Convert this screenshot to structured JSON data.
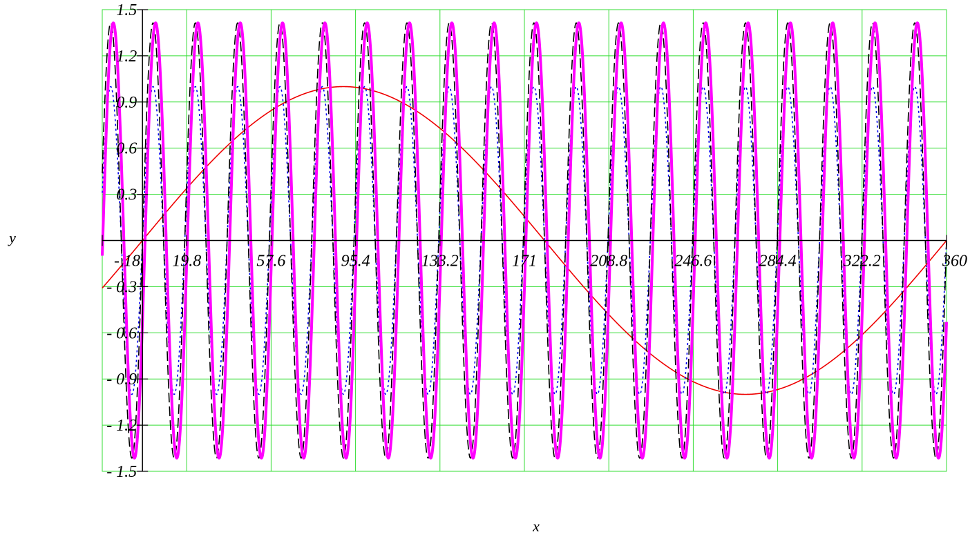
{
  "chart_data": {
    "type": "line",
    "title": "",
    "xlabel": "x",
    "ylabel": "y",
    "xlim": [
      -18,
      360
    ],
    "ylim": [
      -1.5,
      1.5
    ],
    "grid": true,
    "x_ticks": [
      -18,
      19.8,
      57.6,
      95.4,
      133.2,
      171,
      208.8,
      246.6,
      284.4,
      322.2,
      360
    ],
    "x_tick_labels": [
      "- 18",
      "19.8",
      "57.6",
      "95.4",
      "133.2",
      "171",
      "208.8",
      "246.6",
      "284.4",
      "322.2",
      "360"
    ],
    "y_ticks": [
      -1.5,
      -1.2,
      -0.9,
      -0.6,
      -0.3,
      0.3,
      0.6,
      0.9,
      1.2,
      1.5
    ],
    "y_tick_labels": [
      "- 1.5",
      "- 1.2",
      "- 0.9",
      "- 0.6",
      "- 0.3",
      "0.3",
      "0.6",
      "0.9",
      "1.2",
      "1.5"
    ],
    "colors": {
      "grid": "#33dd33",
      "axes": "#000000"
    },
    "series": [
      {
        "amplitude": 1.0,
        "frequency": 1,
        "phase_deg": 0,
        "color": "#ee0000",
        "style": "solid",
        "width": 1.6
      },
      {
        "amplitude": 1.0,
        "frequency": 19,
        "phase_deg": 0,
        "color": "#0000ee",
        "style": "dotted",
        "width": 1.6
      },
      {
        "amplitude": 1.414,
        "frequency": 19,
        "phase_deg": 0,
        "color": "#000000",
        "style": "dashed",
        "width": 1.6
      },
      {
        "amplitude": 1.414,
        "frequency": 19,
        "phase_deg": -22,
        "color": "#ff00ff",
        "style": "solid",
        "width": 4
      }
    ]
  }
}
